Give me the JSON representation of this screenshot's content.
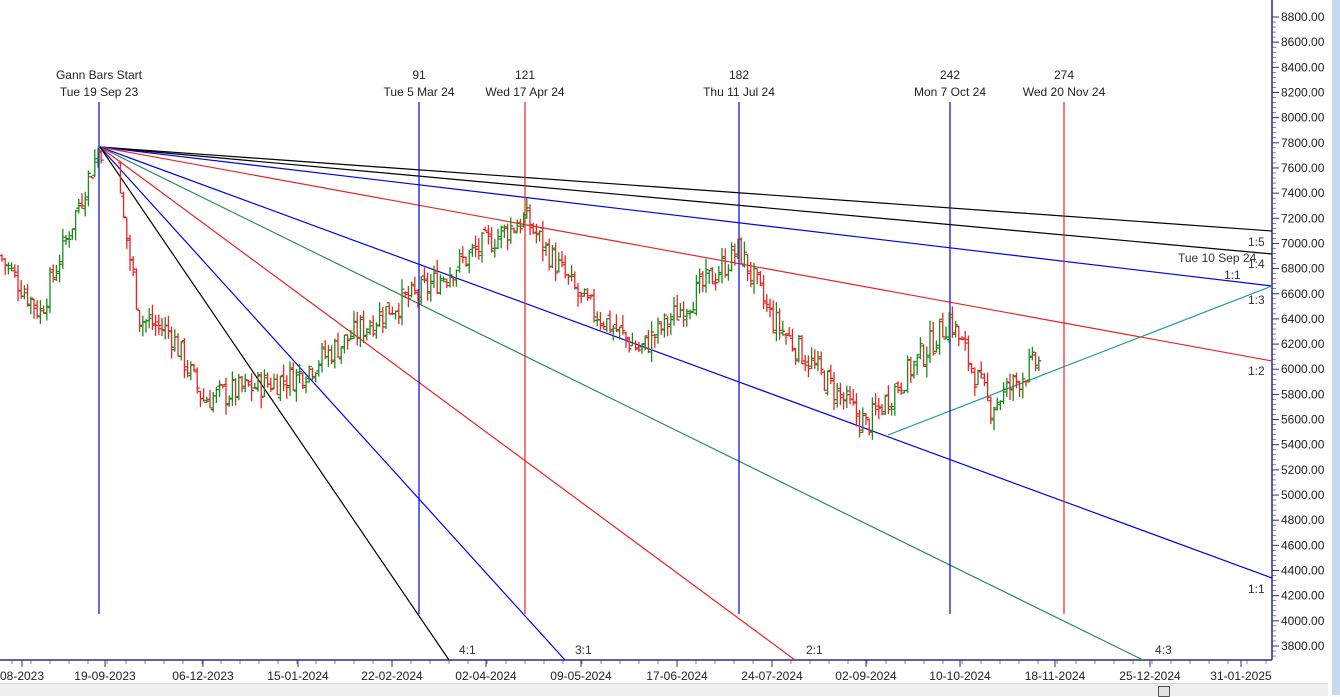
{
  "chart_data": {
    "type": "bar",
    "subtype": "ohlc-price-bars-with-gann-fan",
    "title": "",
    "xlabel": "",
    "ylabel": "",
    "ylim": [
      3800,
      8800
    ],
    "y_ticks": [
      "8800.00",
      "8600.00",
      "8400.00",
      "8200.00",
      "8000.00",
      "7800.00",
      "7600.00",
      "7400.00",
      "7200.00",
      "7000.00",
      "6800.00",
      "6600.00",
      "6400.00",
      "6200.00",
      "6000.00",
      "5800.00",
      "5600.00",
      "5400.00",
      "5200.00",
      "5000.00",
      "4800.00",
      "4600.00",
      "4400.00",
      "4200.00",
      "4000.00",
      "3800.00"
    ],
    "x_ticks": [
      "08-2023",
      "19-09-2023",
      "06-12-2023",
      "15-01-2024",
      "22-02-2024",
      "02-04-2024",
      "09-05-2024",
      "17-06-2024",
      "24-07-2024",
      "02-09-2024",
      "10-10-2024",
      "18-11-2024",
      "25-12-2024",
      "31-01-2025"
    ],
    "grid": false,
    "bar_colors": {
      "up": "#1a8a1a",
      "down": "#ee2222"
    },
    "gann_start": {
      "label": "Gann Bars Start",
      "date": "Tue 19 Sep 23",
      "price": 7780
    },
    "time_markers": [
      {
        "count": "",
        "label": "Gann Bars Start",
        "date": "Tue 19 Sep 23",
        "color": "#0000ee"
      },
      {
        "count": "91",
        "date": "Tue 5 Mar 24",
        "color": "#0000ee"
      },
      {
        "count": "121",
        "date": "Wed 17 Apr 24",
        "color": "#ee2222"
      },
      {
        "count": "182",
        "date": "Thu 11 Jul 24",
        "color": "#0000ee"
      },
      {
        "count": "242",
        "date": "Mon 7 Oct 24",
        "color": "#0000ee"
      },
      {
        "count": "274",
        "date": "Wed 20 Nov 24",
        "color": "#ee2222"
      }
    ],
    "fan_lines": [
      {
        "ratio": "1:5",
        "color": "#000000",
        "end_price": 7080
      },
      {
        "ratio": "1:4",
        "color": "#000000",
        "end_price": 6900
      },
      {
        "ratio": "1:3",
        "color": "#0000ee",
        "end_price": 6640
      },
      {
        "ratio": "1:2",
        "color": "#ee2222",
        "end_price": 6060
      },
      {
        "ratio": "1:1",
        "color": "#0000ee",
        "end_price": 4340
      },
      {
        "ratio": "4:3",
        "color": "#2e8b57",
        "end_date": "25-12-2024"
      },
      {
        "ratio": "2:1",
        "color": "#ee2222",
        "end_date": "24-07-2024"
      },
      {
        "ratio": "3:1",
        "color": "#0000ee",
        "end_date": "09-05-2024"
      },
      {
        "ratio": "4:1",
        "color": "#000000",
        "end_date": "02-04-2024"
      }
    ],
    "rising_line": {
      "label": "Tue 10 Sep 24",
      "ratio": "1:1",
      "color": "#20a0a0",
      "start_price": 5480,
      "end_price": 6640
    },
    "price_path_approx": [
      {
        "date": "08-2023",
        "close": 6900
      },
      {
        "date": "early-09-2023",
        "close": 6450
      },
      {
        "date": "19-09-2023",
        "close": 7780
      },
      {
        "date": "late-09-2023",
        "close": 7450
      },
      {
        "date": "10-2023",
        "close": 6400
      },
      {
        "date": "11-2023",
        "close": 6300
      },
      {
        "date": "06-12-2023",
        "close": 5760
      },
      {
        "date": "15-01-2024",
        "close": 5950
      },
      {
        "date": "22-02-2024",
        "close": 6500
      },
      {
        "date": "05-03-2024",
        "close": 6600
      },
      {
        "date": "02-04-2024",
        "close": 7000
      },
      {
        "date": "17-04-2024",
        "close": 7200
      },
      {
        "date": "09-05-2024",
        "close": 6550
      },
      {
        "date": "17-06-2024",
        "close": 6150
      },
      {
        "date": "11-07-2024",
        "close": 6950
      },
      {
        "date": "24-07-2024",
        "close": 6400
      },
      {
        "date": "02-09-2024",
        "close": 5550
      },
      {
        "date": "07-10-2024",
        "close": 6400
      },
      {
        "date": "23-10-2024",
        "close": 5700
      },
      {
        "date": "08-11-2024",
        "close": 6050
      }
    ]
  },
  "labels": {
    "m0_count": "",
    "m0_title": "Gann Bars Start",
    "m0_date": "Tue 19 Sep 23",
    "m1_count": "91",
    "m1_date": "Tue 5 Mar 24",
    "m2_count": "121",
    "m2_date": "Wed 17 Apr 24",
    "m3_count": "182",
    "m3_date": "Thu 11 Jul 24",
    "m4_count": "242",
    "m4_date": "Mon 7 Oct 24",
    "m5_count": "274",
    "m5_date": "Wed 20 Nov 24",
    "r15": "1:5",
    "r14": "1:4",
    "r13": "1:3",
    "r12": "1:2",
    "r11": "1:1",
    "r43": "4:3",
    "r21": "2:1",
    "r31": "3:1",
    "r41": "4:1",
    "rising_date": "Tue 10 Sep 24",
    "rising_ratio": "1:1"
  }
}
